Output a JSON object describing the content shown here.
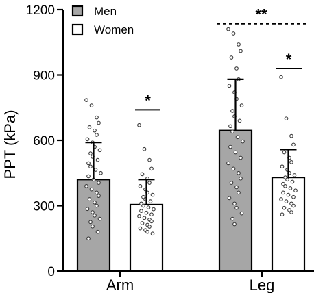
{
  "chart_data": {
    "type": "bar",
    "ylabel": "PPT (kPa)",
    "ylim": [
      0,
      1200
    ],
    "yticks": [
      0,
      300,
      600,
      900,
      1200
    ],
    "categories": [
      "Arm",
      "Leg"
    ],
    "legend_position": "top-left",
    "series": [
      {
        "name": "Men",
        "color": "#a6a6a6",
        "values": [
          420,
          645
        ],
        "sd": [
          170,
          235
        ],
        "points": [
          [
            785,
            760,
            705,
            680,
            660,
            645,
            625,
            605,
            590,
            570,
            555,
            540,
            525,
            510,
            495,
            480,
            465,
            450,
            435,
            420,
            405,
            390,
            375,
            360,
            345,
            330,
            315,
            300,
            285,
            270,
            255,
            240,
            225,
            205,
            180,
            150
          ],
          [
            1110,
            1090,
            1040,
            1010,
            980,
            930,
            880,
            850,
            820,
            790,
            760,
            735,
            710,
            690,
            665,
            640,
            615,
            595,
            570,
            545,
            520,
            495,
            470,
            450,
            425,
            405,
            385,
            360,
            335,
            310,
            290,
            265,
            240,
            215
          ]
        ]
      },
      {
        "name": "Women",
        "color": "#ffffff",
        "values": [
          305,
          430
        ],
        "sd": [
          115,
          128
        ],
        "points": [
          [
            670,
            560,
            510,
            470,
            445,
            425,
            405,
            390,
            375,
            360,
            350,
            340,
            330,
            320,
            310,
            300,
            292,
            284,
            276,
            268,
            260,
            252,
            244,
            236,
            228,
            220,
            212,
            204,
            196,
            188,
            180,
            172
          ],
          [
            890,
            700,
            620,
            580,
            545,
            520,
            500,
            480,
            465,
            450,
            440,
            430,
            420,
            410,
            400,
            390,
            380,
            370,
            360,
            350,
            340,
            330,
            320,
            310,
            300,
            290,
            280,
            270,
            260
          ]
        ]
      }
    ],
    "significance": [
      {
        "label": "*",
        "group": "Arm",
        "y": 740,
        "style": "solid"
      },
      {
        "label": "*",
        "group": "Leg",
        "y": 930,
        "style": "solid"
      },
      {
        "label": "**",
        "group": "between Arm and Leg (Men vs Women)",
        "y": 1135,
        "style": "dashed"
      }
    ]
  }
}
